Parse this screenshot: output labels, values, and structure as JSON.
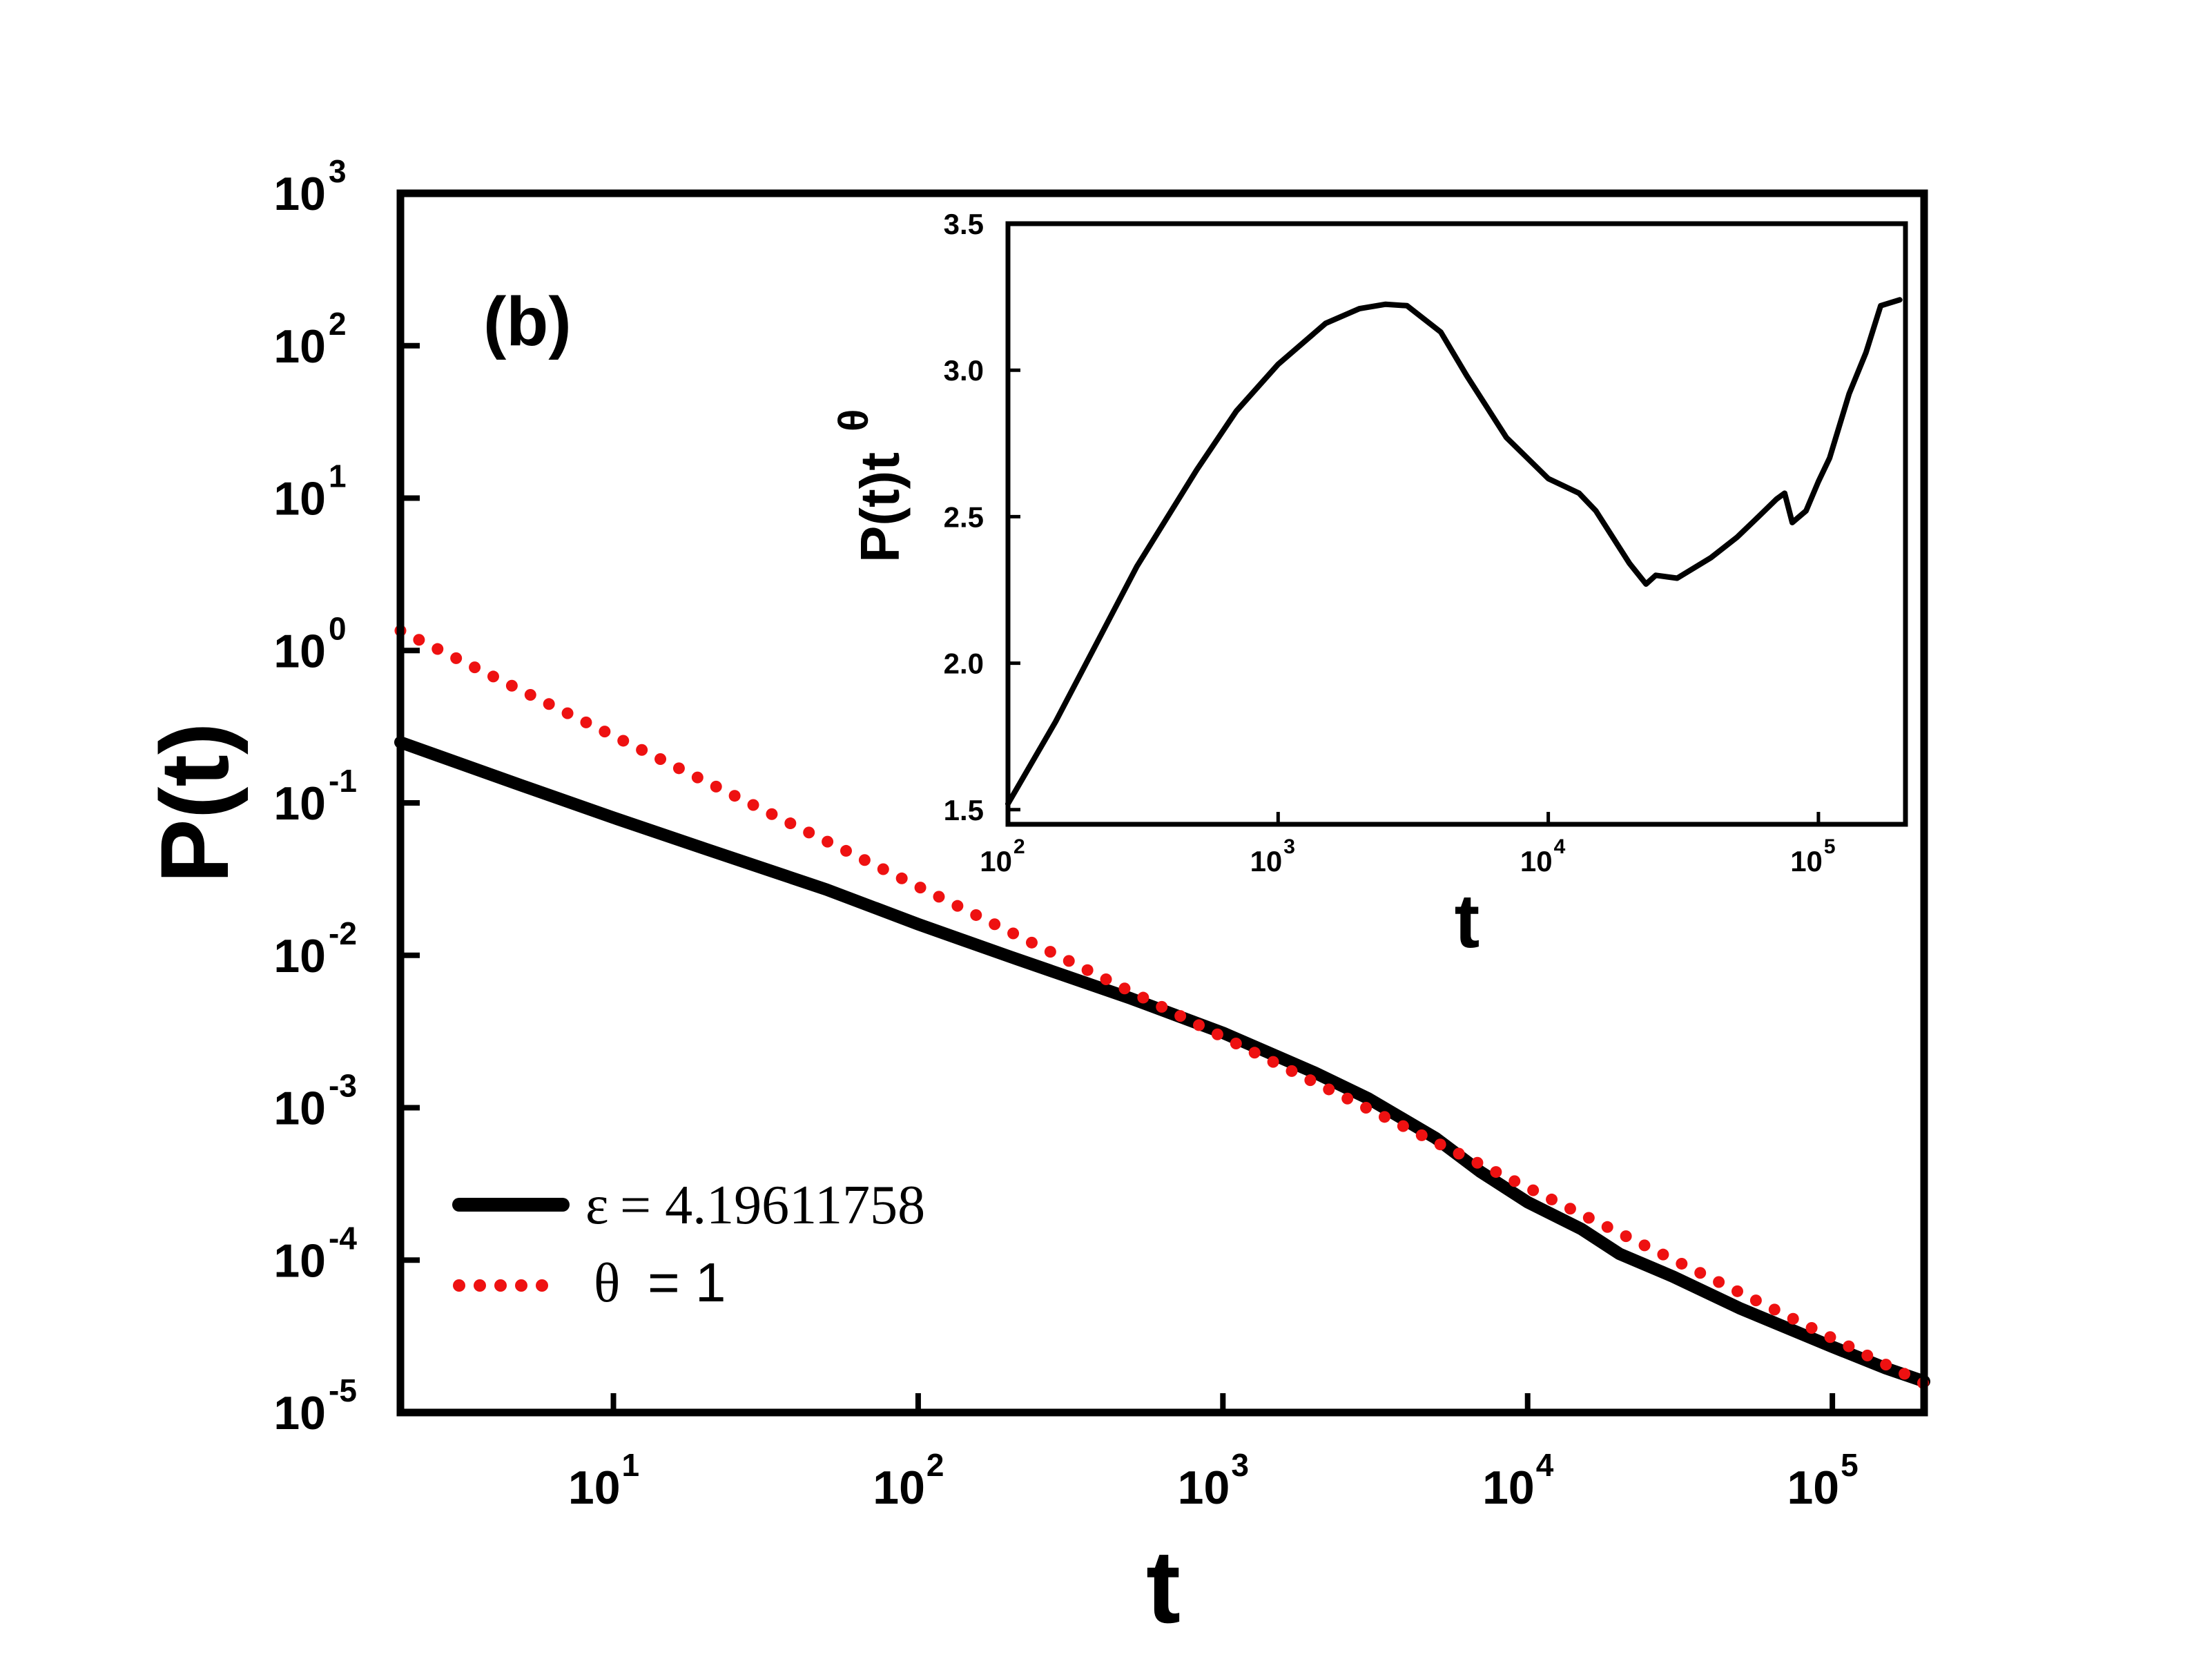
{
  "chart_data": [
    {
      "type": "line",
      "panel_label": "(b)",
      "title": "",
      "xlabel": "t",
      "ylabel": "P(t)",
      "xscale": "log",
      "yscale": "log",
      "xlim": [
        2,
        200000
      ],
      "ylim": [
        1e-05,
        1000
      ],
      "x_ticks": [
        {
          "base": "10",
          "exp": "1"
        },
        {
          "base": "10",
          "exp": "2"
        },
        {
          "base": "10",
          "exp": "3"
        },
        {
          "base": "10",
          "exp": "4"
        },
        {
          "base": "10",
          "exp": "5"
        }
      ],
      "y_ticks": [
        {
          "base": "10",
          "exp": "-5"
        },
        {
          "base": "10",
          "exp": "-4"
        },
        {
          "base": "10",
          "exp": "-3"
        },
        {
          "base": "10",
          "exp": "-2"
        },
        {
          "base": "10",
          "exp": "-1"
        },
        {
          "base": "10",
          "exp": "0"
        },
        {
          "base": "10",
          "exp": "1"
        },
        {
          "base": "10",
          "exp": "2"
        },
        {
          "base": "10",
          "exp": "3"
        }
      ],
      "legend_position": "bottom-left",
      "series": [
        {
          "name": "ε = 4.19611758",
          "legend_symbol": "ε",
          "legend_value": "= 4.19611758",
          "style": "solid",
          "color": "#000000",
          "x": [
            2,
            5,
            10,
            20,
            50,
            100,
            200,
            500,
            1000,
            2000,
            3000,
            5000,
            7000,
            10000,
            15000,
            20000,
            30000,
            50000,
            100000,
            150000,
            200000
          ],
          "y": [
            0.25,
            0.13,
            0.08,
            0.05,
            0.027,
            0.016,
            0.0098,
            0.0052,
            0.0031,
            0.0017,
            0.00115,
            0.00063,
            0.00038,
            0.00024,
            0.00016,
            0.00011,
            7.8e-05,
            4.8e-05,
            2.7e-05,
            1.95e-05,
            1.6e-05
          ]
        },
        {
          "name": "θ = 1",
          "legend_symbol": "θ",
          "legend_value": "= 1",
          "style": "dotted",
          "color": "#ee1111",
          "x": [
            2,
            200000
          ],
          "y": [
            1.35,
            1.55e-05
          ]
        }
      ]
    },
    {
      "type": "line",
      "title": "",
      "xlabel": "t",
      "ylabel": "P(t)t",
      "ylabel_superscript": "θ",
      "xscale": "log",
      "yscale": "linear",
      "xlim": [
        100,
        210000
      ],
      "ylim": [
        1.45,
        3.5
      ],
      "x_ticks": [
        {
          "base": "10",
          "exp": "2"
        },
        {
          "base": "10",
          "exp": "3"
        },
        {
          "base": "10",
          "exp": "4"
        },
        {
          "base": "10",
          "exp": "5"
        }
      ],
      "y_ticks": [
        "1.5",
        "2.0",
        "2.5",
        "3.0",
        "3.5"
      ],
      "series": [
        {
          "name": "P(t)t^θ",
          "style": "solid",
          "color": "#000000",
          "x": [
            100,
            150,
            200,
            300,
            500,
            700,
            1000,
            1500,
            2000,
            2500,
            3000,
            4000,
            5000,
            7000,
            10000,
            13000,
            15000,
            20000,
            23000,
            25000,
            30000,
            40000,
            50000,
            60000,
            70000,
            75000,
            80000,
            90000,
            100000,
            110000,
            130000,
            150000,
            170000,
            200000
          ],
          "y": [
            1.52,
            1.8,
            2.02,
            2.33,
            2.66,
            2.86,
            3.02,
            3.16,
            3.21,
            3.225,
            3.22,
            3.13,
            2.98,
            2.77,
            2.63,
            2.58,
            2.52,
            2.34,
            2.27,
            2.3,
            2.29,
            2.36,
            2.43,
            2.5,
            2.56,
            2.58,
            2.48,
            2.52,
            2.62,
            2.7,
            2.92,
            3.06,
            3.22,
            3.24
          ]
        }
      ]
    }
  ]
}
